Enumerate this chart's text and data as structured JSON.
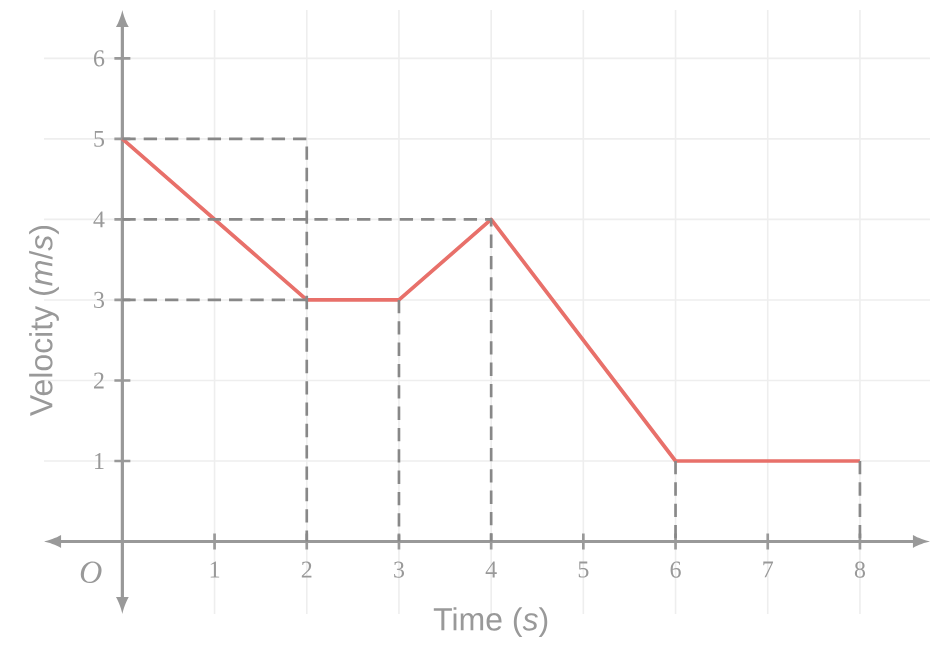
{
  "chart_data": {
    "type": "line",
    "xlabel": "Time (*s*)",
    "ylabel": "Velocity (*m*/*s*)",
    "xlim": [
      -0.85,
      8.76
    ],
    "ylim": [
      -0.9,
      6.6
    ],
    "xticks": [
      1,
      2,
      3,
      4,
      5,
      6,
      7,
      8
    ],
    "yticks": [
      1,
      2,
      3,
      4,
      5,
      6
    ],
    "grid": true,
    "annotations": [
      "O"
    ],
    "series": [
      {
        "color": "#e8706a",
        "x": [
          0,
          2,
          3,
          4,
          6,
          8
        ],
        "values": [
          5,
          3,
          3,
          4,
          1,
          1
        ],
        "line_style": "solid"
      },
      {
        "color": "#888888",
        "x": [
          0,
          2,
          2
        ],
        "values": [
          5,
          5,
          0
        ],
        "line_style": "dashed"
      },
      {
        "color": "#888888",
        "x": [
          0,
          4,
          4
        ],
        "values": [
          4,
          4,
          0
        ],
        "line_style": "dashed"
      },
      {
        "color": "#888888",
        "x": [
          0,
          2
        ],
        "values": [
          3,
          3
        ],
        "line_style": "dashed"
      },
      {
        "color": "#888888",
        "x": [
          3,
          3
        ],
        "values": [
          3,
          0
        ],
        "line_style": "dashed"
      },
      {
        "color": "#888888",
        "x": [
          6,
          6
        ],
        "values": [
          1,
          0
        ],
        "line_style": "dashed"
      },
      {
        "color": "#888888",
        "x": [
          8,
          8
        ],
        "values": [
          1,
          0
        ],
        "line_style": "dashed"
      }
    ]
  }
}
